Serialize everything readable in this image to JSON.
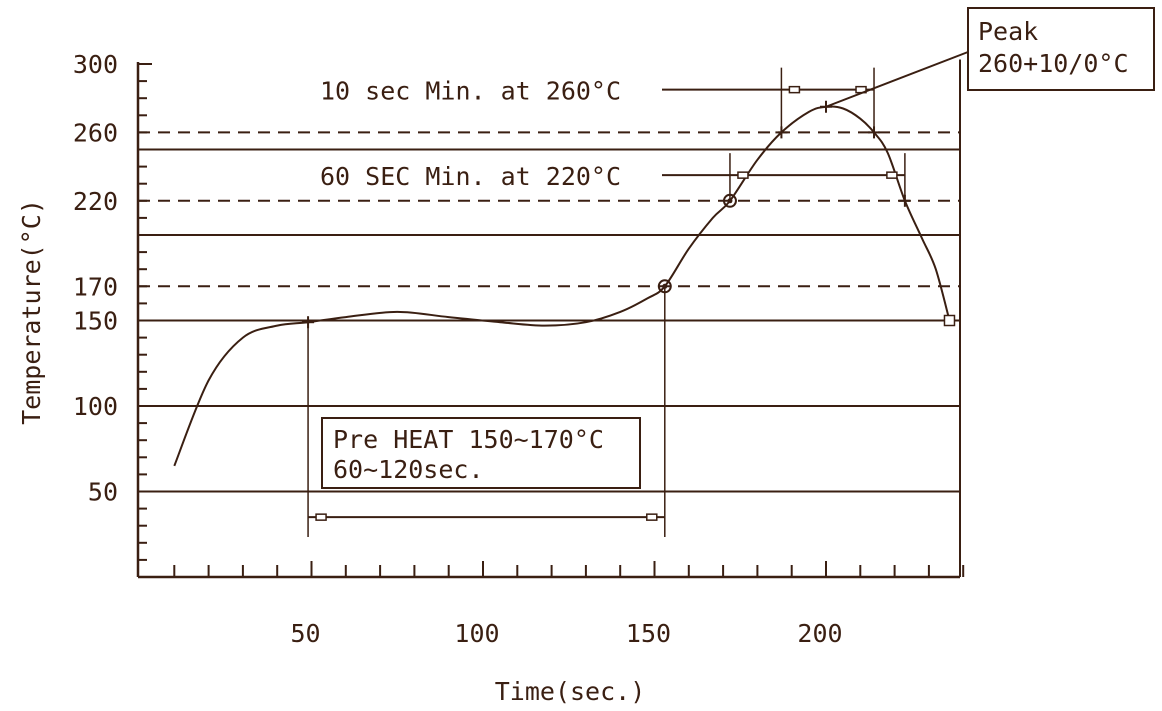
{
  "chart_data": {
    "type": "line",
    "title": "",
    "xlabel": "Time(sec.)",
    "ylabel": "Temperature(°C)",
    "xlim": [
      0,
      240
    ],
    "ylim": [
      0,
      300
    ],
    "x_ticks": [
      50,
      100,
      150,
      200
    ],
    "y_ticks": [
      50,
      100,
      150,
      170,
      220,
      260,
      300
    ],
    "solid_gridlines_y": [
      50,
      100,
      150,
      200,
      250
    ],
    "dashed_gridlines_y": [
      170,
      220,
      260
    ],
    "series": [
      {
        "x": [
          10,
          20,
          30,
          40,
          49,
          60,
          75,
          90,
          105,
          118,
          130,
          140,
          148,
          153,
          160,
          167,
          172,
          180,
          187,
          195,
          200,
          205,
          210,
          214,
          218,
          223,
          228,
          232,
          236
        ],
        "y": [
          65,
          115,
          140,
          147,
          149,
          152,
          155,
          152,
          149,
          147,
          149,
          155,
          163,
          170,
          192,
          210,
          220,
          244,
          260,
          272,
          275,
          274,
          268,
          260,
          248,
          220,
          198,
          180,
          150
        ]
      }
    ],
    "markers": [
      {
        "x": 49,
        "y": 149
      },
      {
        "x": 153,
        "y": 170
      },
      {
        "x": 172,
        "y": 220
      },
      {
        "x": 187,
        "y": 260
      },
      {
        "x": 200,
        "y": 275
      },
      {
        "x": 214,
        "y": 260
      },
      {
        "x": 223,
        "y": 220
      },
      {
        "x": 236,
        "y": 150
      }
    ],
    "annotations": {
      "preheat": {
        "line1": "Pre HEAT 150~170°C",
        "line2": "60~120sec.",
        "range_x": [
          49,
          153
        ],
        "level_y": 35
      },
      "at220": {
        "text": "60 SEC Min. at 220°C",
        "range_x": [
          172,
          223
        ],
        "level_y": 235
      },
      "at260": {
        "text": "10 sec Min. at 260°C",
        "range_x": [
          187,
          214
        ],
        "level_y": 285
      },
      "peak": {
        "line1": "Peak",
        "line2": "260+10/0°C",
        "point_x": 200,
        "point_y": 275
      }
    }
  }
}
